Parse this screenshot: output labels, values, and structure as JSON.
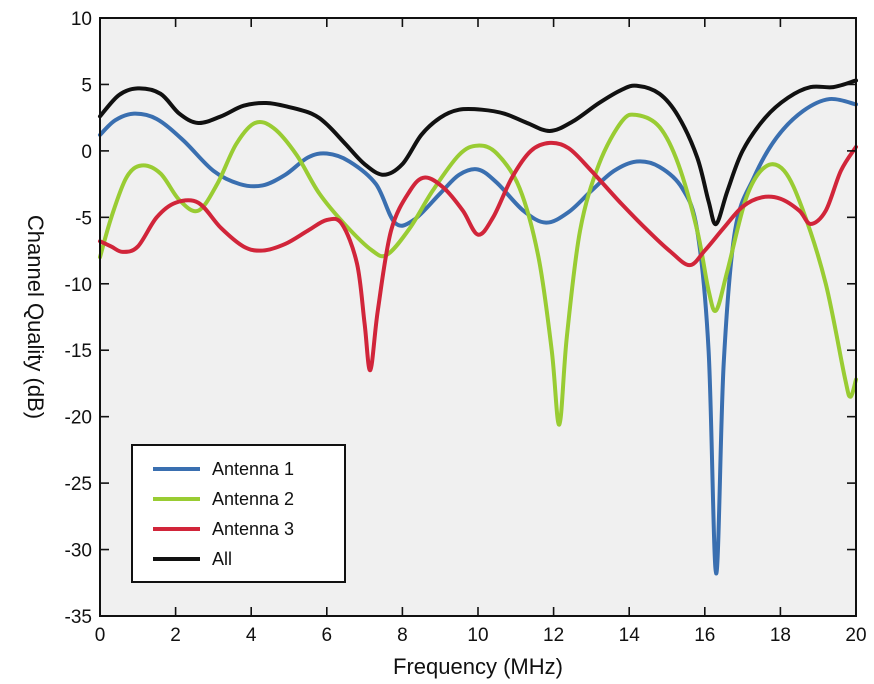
{
  "chart_data": {
    "type": "line",
    "title": "",
    "xlabel": "Frequency (MHz)",
    "ylabel": "Channel Quality (dB)",
    "xlim": [
      0,
      20
    ],
    "ylim": [
      -35,
      10
    ],
    "xticks": [
      0,
      2,
      4,
      6,
      8,
      10,
      12,
      14,
      16,
      18,
      20
    ],
    "yticks": [
      10,
      5,
      0,
      -5,
      -10,
      -15,
      -20,
      -25,
      -30,
      -35
    ],
    "grid": false,
    "legend_position": "bottom-left",
    "plot_background": "#f0f0f0",
    "series": [
      {
        "name": "Antenna 1",
        "color": "#3a6fb0",
        "points": [
          [
            0,
            1.2
          ],
          [
            0.4,
            2.3
          ],
          [
            0.9,
            2.8
          ],
          [
            1.5,
            2.4
          ],
          [
            2.2,
            0.8
          ],
          [
            3,
            -1.5
          ],
          [
            3.7,
            -2.5
          ],
          [
            4.3,
            -2.6
          ],
          [
            4.9,
            -1.8
          ],
          [
            5.5,
            -0.5
          ],
          [
            6,
            -0.2
          ],
          [
            6.6,
            -0.8
          ],
          [
            7.3,
            -2.5
          ],
          [
            7.8,
            -5.4
          ],
          [
            8.3,
            -5.2
          ],
          [
            9,
            -3.2
          ],
          [
            9.5,
            -1.8
          ],
          [
            10,
            -1.4
          ],
          [
            10.5,
            -2.4
          ],
          [
            11.2,
            -4.5
          ],
          [
            11.8,
            -5.4
          ],
          [
            12.4,
            -4.6
          ],
          [
            13,
            -3
          ],
          [
            13.6,
            -1.5
          ],
          [
            14.2,
            -0.8
          ],
          [
            14.8,
            -1.2
          ],
          [
            15.4,
            -2.8
          ],
          [
            15.8,
            -6
          ],
          [
            16.1,
            -15
          ],
          [
            16.3,
            -31.8
          ],
          [
            16.5,
            -16
          ],
          [
            16.8,
            -6
          ],
          [
            17.3,
            -2
          ],
          [
            17.9,
            1
          ],
          [
            18.6,
            3
          ],
          [
            19.3,
            3.9
          ],
          [
            20,
            3.5
          ]
        ]
      },
      {
        "name": "Antenna 2",
        "color": "#99cc33",
        "points": [
          [
            0,
            -8
          ],
          [
            0.3,
            -5
          ],
          [
            0.7,
            -2
          ],
          [
            1.1,
            -1.1
          ],
          [
            1.6,
            -1.7
          ],
          [
            2.1,
            -3.7
          ],
          [
            2.6,
            -4.5
          ],
          [
            3.1,
            -2.5
          ],
          [
            3.6,
            0.5
          ],
          [
            4.1,
            2.1
          ],
          [
            4.6,
            1.7
          ],
          [
            5.2,
            -0.3
          ],
          [
            5.8,
            -3.2
          ],
          [
            6.5,
            -5.6
          ],
          [
            7.2,
            -7.5
          ],
          [
            7.6,
            -7.8
          ],
          [
            8.2,
            -5.8
          ],
          [
            8.8,
            -3
          ],
          [
            9.5,
            -0.3
          ],
          [
            10,
            0.4
          ],
          [
            10.5,
            -0.2
          ],
          [
            11.1,
            -2.8
          ],
          [
            11.6,
            -8
          ],
          [
            11.95,
            -15
          ],
          [
            12.15,
            -20.6
          ],
          [
            12.35,
            -14
          ],
          [
            12.7,
            -6
          ],
          [
            13.2,
            -1
          ],
          [
            13.8,
            2.2
          ],
          [
            14.2,
            2.7
          ],
          [
            14.8,
            1.8
          ],
          [
            15.3,
            -1
          ],
          [
            15.8,
            -6
          ],
          [
            16.1,
            -10.5
          ],
          [
            16.3,
            -12
          ],
          [
            16.6,
            -9
          ],
          [
            17.1,
            -3.5
          ],
          [
            17.6,
            -1.2
          ],
          [
            18.1,
            -1.5
          ],
          [
            18.6,
            -4.5
          ],
          [
            19.2,
            -10
          ],
          [
            19.7,
            -17
          ],
          [
            19.85,
            -18.5
          ],
          [
            20,
            -17.2
          ]
        ]
      },
      {
        "name": "Antenna 3",
        "color": "#d1253a",
        "points": [
          [
            0,
            -6.8
          ],
          [
            0.3,
            -7.2
          ],
          [
            0.6,
            -7.6
          ],
          [
            1,
            -7.2
          ],
          [
            1.5,
            -5
          ],
          [
            2,
            -3.9
          ],
          [
            2.6,
            -3.9
          ],
          [
            3.2,
            -5.8
          ],
          [
            3.8,
            -7.2
          ],
          [
            4.3,
            -7.5
          ],
          [
            4.9,
            -7
          ],
          [
            5.5,
            -6
          ],
          [
            6,
            -5.2
          ],
          [
            6.4,
            -5.5
          ],
          [
            6.8,
            -8.5
          ],
          [
            7,
            -13
          ],
          [
            7.15,
            -16.5
          ],
          [
            7.35,
            -12
          ],
          [
            7.7,
            -6
          ],
          [
            8.2,
            -3
          ],
          [
            8.6,
            -2
          ],
          [
            9.1,
            -2.8
          ],
          [
            9.6,
            -4.5
          ],
          [
            10,
            -6.3
          ],
          [
            10.4,
            -5
          ],
          [
            10.9,
            -2
          ],
          [
            11.4,
            0
          ],
          [
            11.9,
            0.6
          ],
          [
            12.4,
            0.2
          ],
          [
            13,
            -1.5
          ],
          [
            13.8,
            -4
          ],
          [
            14.6,
            -6.3
          ],
          [
            15.1,
            -7.6
          ],
          [
            15.6,
            -8.6
          ],
          [
            16,
            -7.5
          ],
          [
            16.5,
            -5.8
          ],
          [
            17,
            -4.2
          ],
          [
            17.5,
            -3.5
          ],
          [
            18,
            -3.6
          ],
          [
            18.5,
            -4.5
          ],
          [
            18.8,
            -5.5
          ],
          [
            19.2,
            -4.5
          ],
          [
            19.6,
            -1.5
          ],
          [
            20,
            0.3
          ]
        ]
      },
      {
        "name": "All",
        "color": "#111111",
        "points": [
          [
            0,
            2.6
          ],
          [
            0.5,
            4.2
          ],
          [
            1,
            4.7
          ],
          [
            1.6,
            4.3
          ],
          [
            2.1,
            2.8
          ],
          [
            2.6,
            2.1
          ],
          [
            3.2,
            2.6
          ],
          [
            3.8,
            3.4
          ],
          [
            4.4,
            3.6
          ],
          [
            5,
            3.3
          ],
          [
            5.6,
            2.8
          ],
          [
            6,
            2
          ],
          [
            6.5,
            0.5
          ],
          [
            7,
            -1
          ],
          [
            7.5,
            -1.8
          ],
          [
            8,
            -1
          ],
          [
            8.5,
            1.2
          ],
          [
            9,
            2.5
          ],
          [
            9.5,
            3.1
          ],
          [
            10.1,
            3.1
          ],
          [
            10.7,
            2.8
          ],
          [
            11.3,
            2.1
          ],
          [
            11.9,
            1.5
          ],
          [
            12.5,
            2.2
          ],
          [
            13.2,
            3.6
          ],
          [
            13.8,
            4.6
          ],
          [
            14.2,
            4.9
          ],
          [
            14.8,
            4.3
          ],
          [
            15.3,
            2.6
          ],
          [
            15.8,
            -0.5
          ],
          [
            16.1,
            -3.8
          ],
          [
            16.3,
            -5.5
          ],
          [
            16.6,
            -3
          ],
          [
            17,
            0
          ],
          [
            17.6,
            2.5
          ],
          [
            18.2,
            4
          ],
          [
            18.8,
            4.8
          ],
          [
            19.4,
            4.8
          ],
          [
            20,
            5.3
          ]
        ]
      }
    ]
  }
}
